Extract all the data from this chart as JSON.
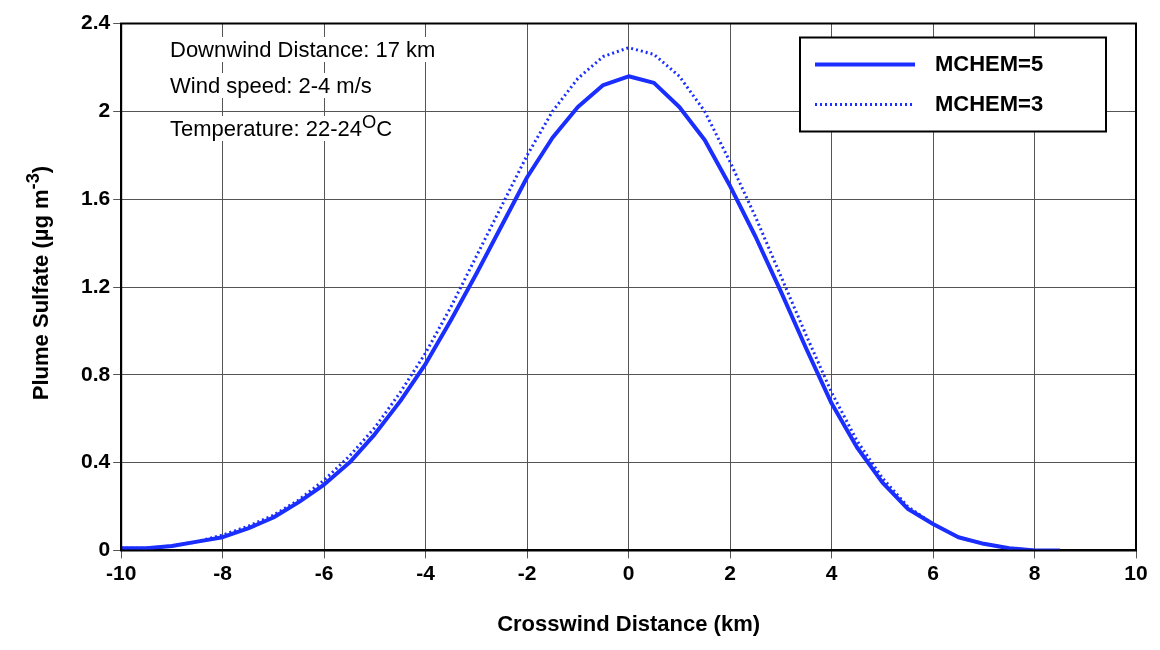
{
  "chart_data": {
    "type": "line",
    "xlabel": "Crosswind Distance (km)",
    "ylabel": "Plume Sulfate (µg m$^{-3}$)",
    "x": [
      -10,
      -9.5,
      -9,
      -8.5,
      -8,
      -7.5,
      -7,
      -6.5,
      -6,
      -5.5,
      -5,
      -4.5,
      -4,
      -3.5,
      -3,
      -2.5,
      -2,
      -1.5,
      -1,
      -0.5,
      0,
      0.5,
      1,
      1.5,
      2,
      2.5,
      3,
      3.5,
      4,
      4.5,
      5,
      5.5,
      6,
      6.5,
      7,
      7.5,
      8,
      8.5
    ],
    "series": [
      {
        "name": "MCHEM=5",
        "color": "#1a2eff",
        "line_style": "solid",
        "values": [
          0.01,
          0.01,
          0.02,
          0.04,
          0.06,
          0.1,
          0.15,
          0.22,
          0.3,
          0.4,
          0.53,
          0.68,
          0.85,
          1.05,
          1.26,
          1.48,
          1.7,
          1.88,
          2.02,
          2.12,
          2.16,
          2.13,
          2.02,
          1.87,
          1.66,
          1.43,
          1.18,
          0.92,
          0.67,
          0.47,
          0.31,
          0.19,
          0.12,
          0.06,
          0.03,
          0.01,
          0,
          0
        ]
      },
      {
        "name": "MCHEM=3",
        "color": "#1a2eff",
        "line_style": "dotted",
        "values": [
          0.01,
          0.01,
          0.02,
          0.04,
          0.07,
          0.11,
          0.16,
          0.23,
          0.32,
          0.43,
          0.56,
          0.72,
          0.9,
          1.11,
          1.34,
          1.57,
          1.8,
          2,
          2.15,
          2.25,
          2.29,
          2.26,
          2.16,
          2,
          1.77,
          1.52,
          1.25,
          0.98,
          0.72,
          0.5,
          0.33,
          0.2,
          0.12,
          0.06,
          0.03,
          0.01,
          0,
          0
        ]
      }
    ],
    "xlim": [
      -10,
      10
    ],
    "xticks": [
      -10,
      -8,
      -6,
      -4,
      -2,
      0,
      2,
      4,
      6,
      8,
      10
    ],
    "ylim": [
      0,
      2.4
    ],
    "yticks": [
      0,
      0.4,
      0.8,
      1.2,
      1.6,
      2,
      2.4
    ],
    "grid": true,
    "legend": "top right",
    "marker": "none",
    "annotations": [
      "Downwind Distance: 17 km",
      "Wind speed: 2-4 m/s",
      "Temperature: 22-24$^{O}$C"
    ]
  }
}
